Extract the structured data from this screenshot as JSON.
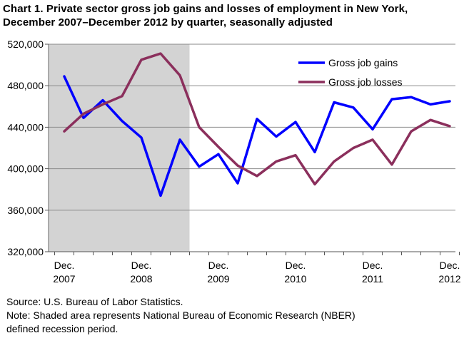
{
  "chart_data": {
    "type": "line",
    "title_lines": [
      "Chart 1. Private sector gross job gains and losses of employment in New York,",
      "December 2007–December 2012 by quarter, seasonally adjusted"
    ],
    "x": [
      "2007-12",
      "2008-03",
      "2008-06",
      "2008-09",
      "2008-12",
      "2009-03",
      "2009-06",
      "2009-09",
      "2009-12",
      "2010-03",
      "2010-06",
      "2010-09",
      "2010-12",
      "2011-03",
      "2011-06",
      "2011-09",
      "2011-12",
      "2012-03",
      "2012-06",
      "2012-09",
      "2012-12"
    ],
    "x_tick_labels": [
      {
        "line1": "Dec.",
        "line2": "2007"
      },
      {
        "line1": "Dec.",
        "line2": "2008"
      },
      {
        "line1": "Dec.",
        "line2": "2009"
      },
      {
        "line1": "Dec.",
        "line2": "2010"
      },
      {
        "line1": "Dec.",
        "line2": "2011"
      },
      {
        "line1": "Dec.",
        "line2": "2012"
      }
    ],
    "y_tick_labels": [
      "320,000",
      "360,000",
      "400,000",
      "440,000",
      "480,000",
      "520,000"
    ],
    "ylim": [
      320000,
      520000
    ],
    "y_ticks": [
      320000,
      360000,
      400000,
      440000,
      480000,
      520000
    ],
    "grid": "horizontal",
    "legend_position": "top-right",
    "shaded_region": {
      "start": "2007-12",
      "end": "2009-06",
      "color": "#d3d3d3"
    },
    "series": [
      {
        "name": "Gross job gains",
        "color": "#0000ff",
        "values": [
          489000,
          449000,
          466000,
          446000,
          430000,
          374000,
          428000,
          402000,
          414000,
          386000,
          448000,
          431000,
          445000,
          416000,
          464000,
          459000,
          438000,
          467000,
          469000,
          462000,
          465000
        ]
      },
      {
        "name": "Gross job losses",
        "color": "#8b2f5c",
        "values": [
          436000,
          453000,
          462000,
          470000,
          505000,
          511000,
          490000,
          440000,
          421000,
          403000,
          393000,
          407000,
          413000,
          385000,
          407000,
          420000,
          428000,
          404000,
          436000,
          447000,
          441000
        ]
      }
    ]
  },
  "footer": {
    "source": "Source: U.S. Bureau  of Labor Statistics.",
    "note_line1": "Note: Shaded area represents National Bureau of Economic Research (NBER)",
    "note_line2": "defined recession period."
  }
}
